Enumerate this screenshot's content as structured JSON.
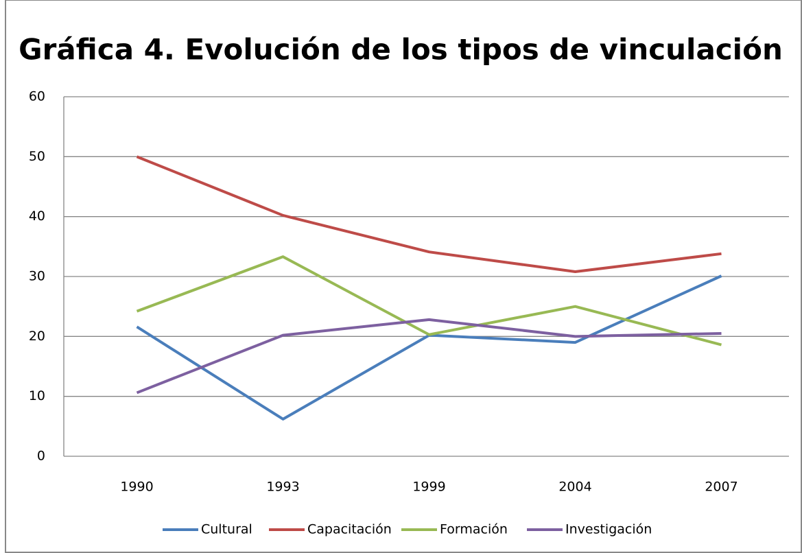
{
  "chart_data": {
    "type": "line",
    "title": "Gráfica 4. Evolución de los tipos de vinculación",
    "categories": [
      "1990",
      "1993",
      "1999",
      "2004",
      "2007"
    ],
    "series": [
      {
        "name": "Cultural",
        "color": "#4a7ebb",
        "values": [
          21.6,
          6.2,
          20.2,
          19,
          30.1
        ]
      },
      {
        "name": "Capacitación",
        "color": "#be4b48",
        "values": [
          50,
          40.2,
          34.1,
          30.8,
          33.8
        ]
      },
      {
        "name": "Formación",
        "color": "#98b954",
        "values": [
          24.2,
          33.3,
          20.3,
          25,
          18.6
        ]
      },
      {
        "name": "Investigación",
        "color": "#7d60a0",
        "values": [
          10.6,
          20.2,
          22.8,
          20,
          20.5
        ]
      }
    ],
    "ylim": [
      0,
      60
    ],
    "yticks": [
      0,
      10,
      20,
      30,
      40,
      50,
      60
    ],
    "grid": true,
    "legend": "bottom"
  }
}
